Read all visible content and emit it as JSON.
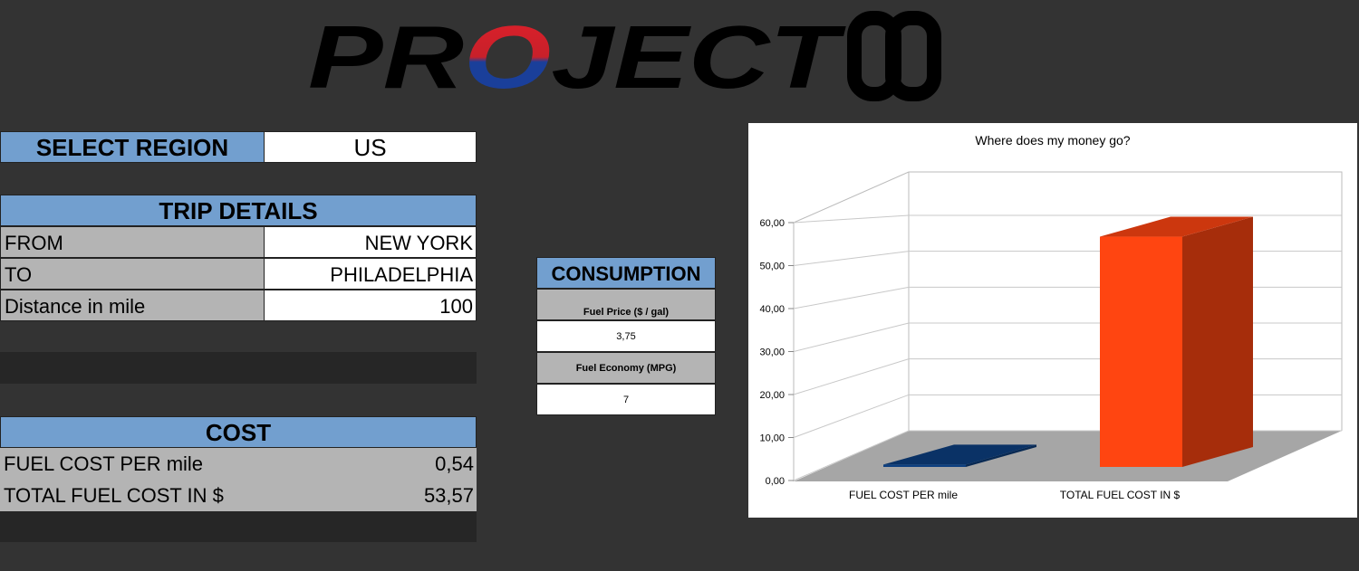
{
  "logo": [
    "PR",
    "O",
    "JECT"
  ],
  "region": {
    "label": "SELECT REGION",
    "value": "US"
  },
  "trip": {
    "title": "TRIP DETAILS",
    "rows": [
      [
        "FROM",
        "NEW YORK"
      ],
      [
        "TO",
        "PHILADELPHIA"
      ],
      [
        "Distance in mile",
        "100"
      ]
    ]
  },
  "consumption": {
    "title": "CONSUMPTION",
    "rows": [
      [
        "Fuel Price ($ / gal)",
        "3,75"
      ],
      [
        "Fuel Economy (MPG)",
        "7"
      ]
    ]
  },
  "cost": {
    "title": "COST",
    "rows": [
      [
        "FUEL COST PER mile",
        "0,54"
      ],
      [
        "TOTAL FUEL COST IN $",
        "53,57"
      ]
    ]
  },
  "chart_data": {
    "type": "bar3d",
    "title": "Where does my money go?",
    "categories": [
      "FUEL COST PER mile",
      "TOTAL FUEL COST IN $"
    ],
    "values": [
      0.54,
      53.57
    ],
    "colors": [
      "#0d3f80",
      "#ff4511"
    ],
    "ylim": [
      0,
      60
    ],
    "yticks": [
      {
        "value": 0,
        "label": "0,00"
      },
      {
        "value": 10,
        "label": "10,00"
      },
      {
        "value": 20,
        "label": "20,00"
      },
      {
        "value": 30,
        "label": "30,00"
      },
      {
        "value": 40,
        "label": "40,00"
      },
      {
        "value": 50,
        "label": "50,00"
      },
      {
        "value": 60,
        "label": "60,00"
      }
    ],
    "grid": true
  }
}
